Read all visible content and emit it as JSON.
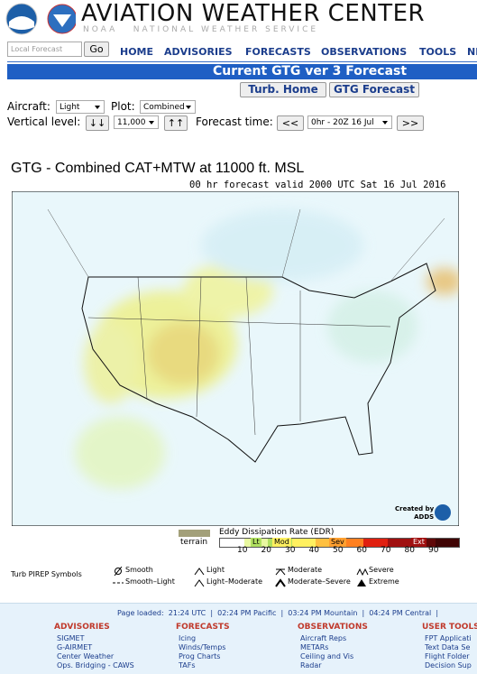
{
  "header": {
    "title": "AVIATION WEATHER CENTER",
    "subtitle": "NOAA   NATIONAL WEATHER SERVICE"
  },
  "search": {
    "placeholder": "Local Forecast",
    "button": "Go"
  },
  "nav": [
    "HOME",
    "ADVISORIES",
    "FORECASTS",
    "OBSERVATIONS",
    "TOOLS",
    "NE"
  ],
  "banner": "Current GTG ver 3 Forecast",
  "buttons": [
    "Turb. Home",
    "GTG Forecast"
  ],
  "controls": {
    "aircraft_label": "Aircraft:",
    "aircraft": "Light",
    "plot_label": "Plot:",
    "plot": "Combined",
    "level_label": "Vertical level:",
    "level_down": "↓↓",
    "level": "11,000",
    "level_up": "↑↑",
    "time_label": "Forecast time:",
    "prev": "<<",
    "time": "0hr - 20Z 16 Jul",
    "next": ">>"
  },
  "map": {
    "title": "GTG - Combined CAT+MTW at 11000 ft. MSL",
    "subtitle": "00 hr forecast valid 2000 UTC Sat 16 Jul 2016",
    "credit": [
      "Created by",
      "ADDS"
    ]
  },
  "legend": {
    "terrain": "terrain",
    "title": "Eddy Dissipation Rate (EDR)",
    "classes": [
      "Lt",
      "Mod",
      "Sev",
      "Ext"
    ],
    "ticks": [
      "10",
      "20",
      "30",
      "40",
      "50",
      "60",
      "70",
      "80",
      "90"
    ]
  },
  "pirep": {
    "label": "Turb PIREP Symbols",
    "symbols": [
      "Smooth",
      "Smooth–Light",
      "Light",
      "Light–Moderate",
      "Moderate",
      "Moderate–Severe",
      "Severe",
      "Extreme"
    ]
  },
  "footer": {
    "page_loaded": "Page loaded:  21:24 UTC  |  02:24 PM Pacific  |  03:24 PM Mountain  |  04:24 PM Central  |",
    "columns": [
      {
        "title": "ADVISORIES",
        "items": [
          "SIGMET",
          "G-AIRMET",
          "Center Weather",
          "Ops. Bridging - CAWS"
        ]
      },
      {
        "title": "FORECASTS",
        "items": [
          "Icing",
          "Winds/Temps",
          "Prog Charts",
          "TAFs"
        ]
      },
      {
        "title": "OBSERVATIONS",
        "items": [
          "Aircraft Reps",
          "METARs",
          "Ceiling and Vis",
          "Radar"
        ]
      },
      {
        "title": "USER TOOLS",
        "items": [
          "FPT Applicati",
          "Text Data Se",
          "Flight Folder",
          "Decision Sup"
        ]
      }
    ]
  }
}
